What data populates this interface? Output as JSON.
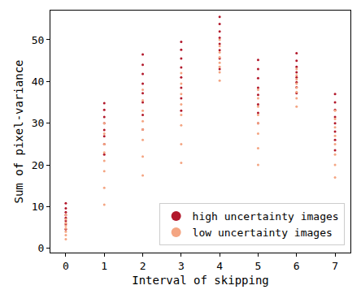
{
  "chart_data": {
    "type": "scatter",
    "xlabel": "Interval of skipping",
    "ylabel": "Sum of pixel-variance",
    "x": [
      0,
      0,
      0,
      0,
      0,
      0,
      0,
      0,
      1,
      1,
      1,
      1,
      1,
      1,
      1,
      1,
      2,
      2,
      2,
      2,
      2,
      2,
      2,
      2,
      3,
      3,
      3,
      3,
      3,
      3,
      3,
      3,
      4,
      4,
      4,
      4,
      4,
      4,
      4,
      4,
      5,
      5,
      5,
      5,
      5,
      5,
      5,
      5,
      6,
      6,
      6,
      6,
      6,
      6,
      6,
      6,
      7,
      7,
      7,
      7,
      7,
      7,
      7,
      7
    ],
    "series": [
      {
        "name": "high uncertainty images",
        "color": "#b2182b",
        "marker": "circle",
        "values": [
          10.8,
          9.6,
          8.7,
          8.0,
          7.3,
          6.6,
          5.8,
          4.6,
          34.8,
          33.2,
          31.5,
          30.0,
          28.4,
          26.9,
          25.0,
          22.5,
          46.5,
          44.0,
          41.8,
          39.5,
          37.2,
          35.0,
          32.0,
          28.5,
          49.5,
          47.6,
          45.5,
          43.4,
          41.0,
          38.5,
          36.0,
          33.0,
          55.5,
          53.8,
          52.0,
          50.5,
          49.0,
          47.5,
          45.5,
          43.0,
          45.2,
          43.0,
          40.8,
          38.5,
          36.8,
          34.5,
          32.5,
          30.0,
          46.8,
          45.0,
          43.5,
          42.2,
          41.0,
          39.8,
          38.6,
          37.2,
          37.0,
          35.0,
          33.2,
          31.5,
          30.0,
          28.0,
          26.0,
          23.5
        ]
      },
      {
        "name": "low uncertainty images",
        "color": "#f4a582",
        "marker": "circle",
        "values": [
          8.0,
          7.0,
          6.1,
          5.4,
          4.8,
          4.0,
          3.2,
          2.2,
          30.0,
          27.5,
          25.0,
          23.0,
          21.0,
          18.5,
          14.5,
          10.5,
          38.0,
          35.5,
          33.0,
          30.5,
          28.5,
          26.0,
          22.0,
          17.5,
          42.0,
          39.5,
          37.0,
          34.5,
          32.0,
          29.5,
          25.0,
          20.5,
          50.0,
          48.5,
          47.0,
          45.8,
          44.5,
          43.5,
          42.2,
          40.2,
          38.0,
          36.0,
          34.0,
          32.0,
          30.0,
          27.5,
          24.0,
          20.0,
          43.0,
          41.5,
          40.5,
          39.5,
          38.5,
          37.5,
          36.0,
          34.0,
          33.0,
          31.0,
          29.0,
          27.0,
          25.0,
          22.5,
          20.0,
          17.0
        ]
      }
    ],
    "xlim": [
      -0.4,
      7.4
    ],
    "xticks": [
      0,
      1,
      2,
      3,
      4,
      5,
      6,
      7
    ],
    "ylim": [
      -1,
      57
    ],
    "yticks": [
      0,
      10,
      20,
      30,
      40,
      50
    ],
    "grid": false,
    "legend": "lower right"
  }
}
